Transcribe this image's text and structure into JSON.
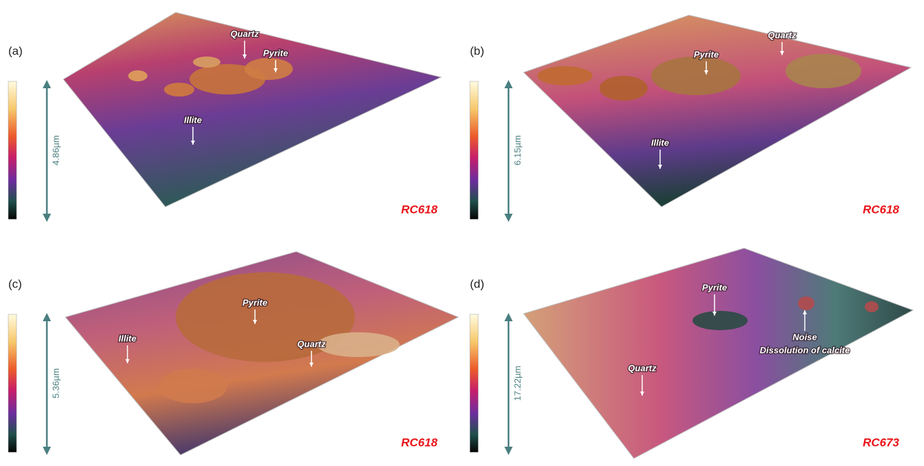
{
  "panels": [
    {
      "label": "(a)",
      "height": "4.86µm",
      "sample": "RC618",
      "annotations": [
        "Quartz",
        "Pyrite",
        "Illite"
      ]
    },
    {
      "label": "(b)",
      "height": "6.15µm",
      "sample": "RC618",
      "annotations": [
        "Quartz",
        "Pyrite",
        "Illite"
      ]
    },
    {
      "label": "(c)",
      "height": "5.36µm",
      "sample": "RC618",
      "annotations": [
        "Pyrite",
        "Illite",
        "Quartz"
      ]
    },
    {
      "label": "(d)",
      "height": "17.22µm",
      "sample": "RC673",
      "annotations": [
        "Pyrite",
        "Noise",
        "Dissolution of calcite",
        "Quartz"
      ]
    }
  ]
}
